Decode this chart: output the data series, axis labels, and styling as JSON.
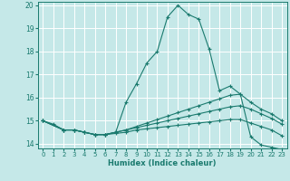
{
  "xlabel": "Humidex (Indice chaleur)",
  "xlim": [
    -0.5,
    23.5
  ],
  "ylim": [
    13.8,
    20.15
  ],
  "yticks": [
    14,
    15,
    16,
    17,
    18,
    19,
    20
  ],
  "xticks": [
    0,
    1,
    2,
    3,
    4,
    5,
    6,
    7,
    8,
    9,
    10,
    11,
    12,
    13,
    14,
    15,
    16,
    17,
    18,
    19,
    20,
    21,
    22,
    23
  ],
  "background_color": "#c5e8e8",
  "grid_color": "#ffffff",
  "line_color": "#1a7a6e",
  "series": [
    {
      "x": [
        0,
        1,
        2,
        3,
        4,
        5,
        6,
        7,
        8,
        9,
        10,
        11,
        12,
        13,
        14,
        15,
        16,
        17,
        18,
        19,
        20,
        21,
        22,
        23
      ],
      "y": [
        15.0,
        14.85,
        14.6,
        14.6,
        14.5,
        14.4,
        14.4,
        14.5,
        15.8,
        16.6,
        17.5,
        18.0,
        19.5,
        20.0,
        19.6,
        19.4,
        18.1,
        16.3,
        16.5,
        16.15,
        14.3,
        13.95,
        13.85,
        13.75
      ]
    },
    {
      "x": [
        0,
        2,
        3,
        4,
        5,
        6,
        7,
        8,
        9,
        10,
        11,
        12,
        13,
        14,
        15,
        16,
        17,
        18,
        19,
        20,
        21,
        22,
        23
      ],
      "y": [
        15.0,
        14.6,
        14.6,
        14.5,
        14.4,
        14.4,
        14.5,
        14.6,
        14.75,
        14.9,
        15.05,
        15.2,
        15.35,
        15.5,
        15.65,
        15.8,
        15.95,
        16.1,
        16.15,
        15.8,
        15.5,
        15.3,
        15.0
      ]
    },
    {
      "x": [
        0,
        2,
        3,
        4,
        5,
        6,
        7,
        8,
        9,
        10,
        11,
        12,
        13,
        14,
        15,
        16,
        17,
        18,
        19,
        20,
        21,
        22,
        23
      ],
      "y": [
        15.0,
        14.6,
        14.6,
        14.5,
        14.4,
        14.4,
        14.5,
        14.6,
        14.7,
        14.8,
        14.9,
        15.0,
        15.1,
        15.2,
        15.3,
        15.4,
        15.5,
        15.6,
        15.65,
        15.5,
        15.3,
        15.1,
        14.85
      ]
    },
    {
      "x": [
        0,
        2,
        3,
        4,
        5,
        6,
        7,
        8,
        9,
        10,
        11,
        12,
        13,
        14,
        15,
        16,
        17,
        18,
        19,
        20,
        21,
        22,
        23
      ],
      "y": [
        15.0,
        14.6,
        14.6,
        14.5,
        14.4,
        14.4,
        14.45,
        14.5,
        14.6,
        14.65,
        14.7,
        14.75,
        14.8,
        14.85,
        14.9,
        14.95,
        15.0,
        15.05,
        15.05,
        14.9,
        14.75,
        14.6,
        14.35
      ]
    }
  ]
}
